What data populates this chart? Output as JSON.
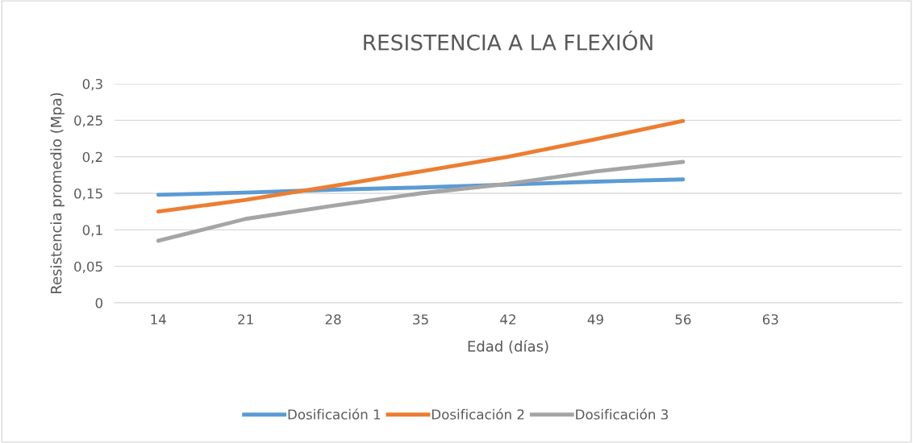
{
  "chart_data": {
    "type": "line",
    "title": "RESISTENCIA A LA FLEXIÓN",
    "xlabel": "Edad (días)",
    "ylabel": "Resistencia promedio (Mpa)",
    "categories": [
      "14",
      "21",
      "28",
      "35",
      "42",
      "49",
      "56",
      "63",
      null
    ],
    "series": [
      {
        "name": "Dosificación 1",
        "color": "#5b9bd5",
        "values": [
          0.148,
          0.151,
          0.155,
          0.158,
          0.162,
          0.166,
          0.169,
          null,
          null
        ]
      },
      {
        "name": "Dosificación 2",
        "color": "#ed7d31",
        "values": [
          0.125,
          0.141,
          0.16,
          0.18,
          0.2,
          0.224,
          0.249,
          null,
          null
        ]
      },
      {
        "name": "Dosificación 3",
        "color": "#a5a5a5",
        "values": [
          0.085,
          0.115,
          0.133,
          0.15,
          0.163,
          0.18,
          0.193,
          null,
          null
        ]
      }
    ],
    "ylim": [
      0,
      0.3
    ],
    "yticks": [
      {
        "value": 0,
        "label": "0"
      },
      {
        "value": 0.05,
        "label": "0,05"
      },
      {
        "value": 0.1,
        "label": "0,1"
      },
      {
        "value": 0.15,
        "label": "0,15"
      },
      {
        "value": 0.2,
        "label": "0,2"
      },
      {
        "value": 0.25,
        "label": "0,25"
      },
      {
        "value": 0.3,
        "label": "0,3"
      }
    ],
    "grid": "y",
    "legend": "bottom",
    "marker": "none",
    "line_style": "solid"
  }
}
